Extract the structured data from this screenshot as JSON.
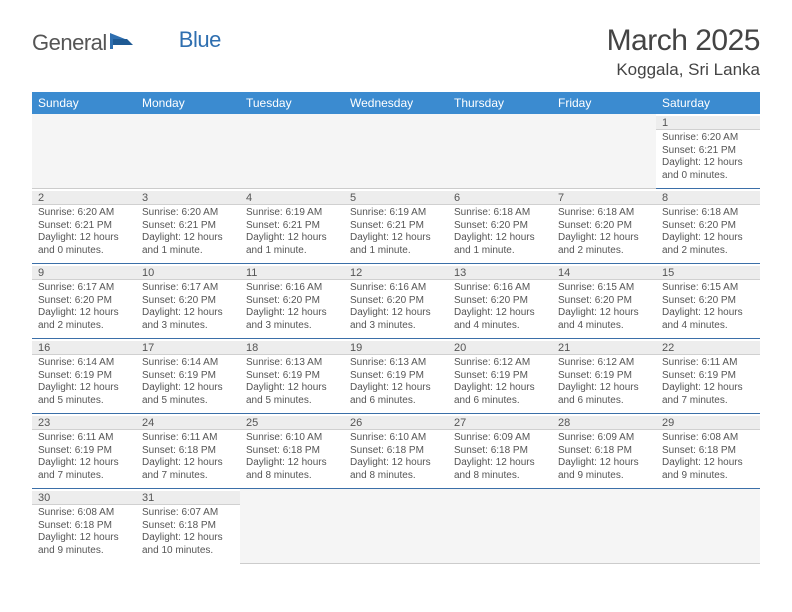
{
  "logo": {
    "part1": "General",
    "part2": "Blue"
  },
  "title": {
    "month": "March 2025",
    "location": "Koggala, Sri Lanka"
  },
  "weekdays": [
    "Sunday",
    "Monday",
    "Tuesday",
    "Wednesday",
    "Thursday",
    "Friday",
    "Saturday"
  ],
  "colors": {
    "header_bg": "#3b8bd0",
    "header_text": "#ffffff",
    "cell_border": "#3b6fa8",
    "daynum_bg": "#ededed",
    "text": "#555555",
    "logo_blue": "#2f6fb0"
  },
  "days": {
    "1": {
      "sunrise": "6:20 AM",
      "sunset": "6:21 PM",
      "daylight": "12 hours and 0 minutes."
    },
    "2": {
      "sunrise": "6:20 AM",
      "sunset": "6:21 PM",
      "daylight": "12 hours and 0 minutes."
    },
    "3": {
      "sunrise": "6:20 AM",
      "sunset": "6:21 PM",
      "daylight": "12 hours and 1 minute."
    },
    "4": {
      "sunrise": "6:19 AM",
      "sunset": "6:21 PM",
      "daylight": "12 hours and 1 minute."
    },
    "5": {
      "sunrise": "6:19 AM",
      "sunset": "6:21 PM",
      "daylight": "12 hours and 1 minute."
    },
    "6": {
      "sunrise": "6:18 AM",
      "sunset": "6:20 PM",
      "daylight": "12 hours and 1 minute."
    },
    "7": {
      "sunrise": "6:18 AM",
      "sunset": "6:20 PM",
      "daylight": "12 hours and 2 minutes."
    },
    "8": {
      "sunrise": "6:18 AM",
      "sunset": "6:20 PM",
      "daylight": "12 hours and 2 minutes."
    },
    "9": {
      "sunrise": "6:17 AM",
      "sunset": "6:20 PM",
      "daylight": "12 hours and 2 minutes."
    },
    "10": {
      "sunrise": "6:17 AM",
      "sunset": "6:20 PM",
      "daylight": "12 hours and 3 minutes."
    },
    "11": {
      "sunrise": "6:16 AM",
      "sunset": "6:20 PM",
      "daylight": "12 hours and 3 minutes."
    },
    "12": {
      "sunrise": "6:16 AM",
      "sunset": "6:20 PM",
      "daylight": "12 hours and 3 minutes."
    },
    "13": {
      "sunrise": "6:16 AM",
      "sunset": "6:20 PM",
      "daylight": "12 hours and 4 minutes."
    },
    "14": {
      "sunrise": "6:15 AM",
      "sunset": "6:20 PM",
      "daylight": "12 hours and 4 minutes."
    },
    "15": {
      "sunrise": "6:15 AM",
      "sunset": "6:20 PM",
      "daylight": "12 hours and 4 minutes."
    },
    "16": {
      "sunrise": "6:14 AM",
      "sunset": "6:19 PM",
      "daylight": "12 hours and 5 minutes."
    },
    "17": {
      "sunrise": "6:14 AM",
      "sunset": "6:19 PM",
      "daylight": "12 hours and 5 minutes."
    },
    "18": {
      "sunrise": "6:13 AM",
      "sunset": "6:19 PM",
      "daylight": "12 hours and 5 minutes."
    },
    "19": {
      "sunrise": "6:13 AM",
      "sunset": "6:19 PM",
      "daylight": "12 hours and 6 minutes."
    },
    "20": {
      "sunrise": "6:12 AM",
      "sunset": "6:19 PM",
      "daylight": "12 hours and 6 minutes."
    },
    "21": {
      "sunrise": "6:12 AM",
      "sunset": "6:19 PM",
      "daylight": "12 hours and 6 minutes."
    },
    "22": {
      "sunrise": "6:11 AM",
      "sunset": "6:19 PM",
      "daylight": "12 hours and 7 minutes."
    },
    "23": {
      "sunrise": "6:11 AM",
      "sunset": "6:19 PM",
      "daylight": "12 hours and 7 minutes."
    },
    "24": {
      "sunrise": "6:11 AM",
      "sunset": "6:18 PM",
      "daylight": "12 hours and 7 minutes."
    },
    "25": {
      "sunrise": "6:10 AM",
      "sunset": "6:18 PM",
      "daylight": "12 hours and 8 minutes."
    },
    "26": {
      "sunrise": "6:10 AM",
      "sunset": "6:18 PM",
      "daylight": "12 hours and 8 minutes."
    },
    "27": {
      "sunrise": "6:09 AM",
      "sunset": "6:18 PM",
      "daylight": "12 hours and 8 minutes."
    },
    "28": {
      "sunrise": "6:09 AM",
      "sunset": "6:18 PM",
      "daylight": "12 hours and 9 minutes."
    },
    "29": {
      "sunrise": "6:08 AM",
      "sunset": "6:18 PM",
      "daylight": "12 hours and 9 minutes."
    },
    "30": {
      "sunrise": "6:08 AM",
      "sunset": "6:18 PM",
      "daylight": "12 hours and 9 minutes."
    },
    "31": {
      "sunrise": "6:07 AM",
      "sunset": "6:18 PM",
      "daylight": "12 hours and 10 minutes."
    }
  },
  "labels": {
    "sunrise": "Sunrise:",
    "sunset": "Sunset:",
    "daylight": "Daylight:"
  },
  "grid": [
    [
      null,
      null,
      null,
      null,
      null,
      null,
      "1"
    ],
    [
      "2",
      "3",
      "4",
      "5",
      "6",
      "7",
      "8"
    ],
    [
      "9",
      "10",
      "11",
      "12",
      "13",
      "14",
      "15"
    ],
    [
      "16",
      "17",
      "18",
      "19",
      "20",
      "21",
      "22"
    ],
    [
      "23",
      "24",
      "25",
      "26",
      "27",
      "28",
      "29"
    ],
    [
      "30",
      "31",
      null,
      null,
      null,
      null,
      null
    ]
  ]
}
